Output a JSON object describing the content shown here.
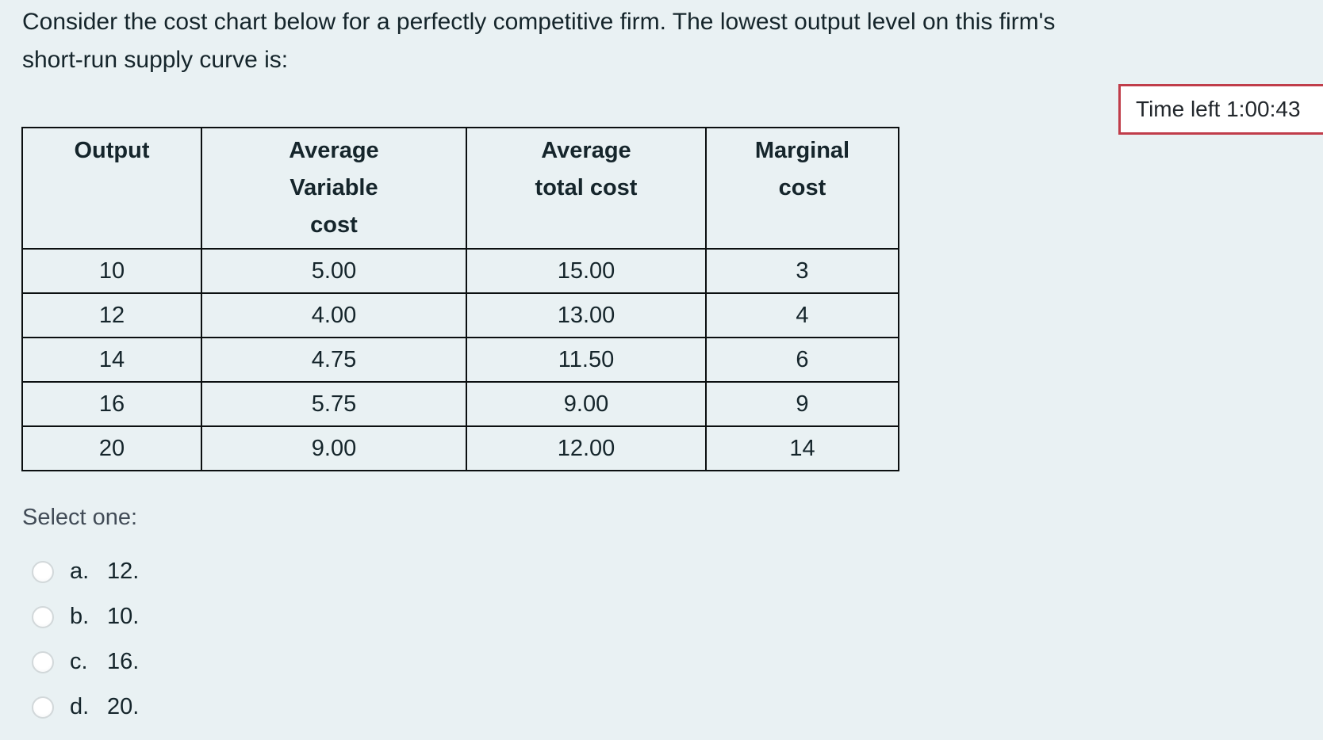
{
  "question": {
    "text": "Consider the cost chart below for a perfectly competitive firm. The lowest output level on this firm's\nshort-run supply curve is:"
  },
  "timer": {
    "label": "Time left 1:00:43"
  },
  "table": {
    "headers": [
      "Output",
      "Average\nVariable\ncost",
      "Average\ntotal cost",
      "Marginal\ncost"
    ],
    "rows": [
      [
        "10",
        "5.00",
        "15.00",
        "3"
      ],
      [
        "12",
        "4.00",
        "13.00",
        "4"
      ],
      [
        "14",
        "4.75",
        "11.50",
        "6"
      ],
      [
        "16",
        "5.75",
        "9.00",
        "9"
      ],
      [
        "20",
        "9.00",
        "12.00",
        "14"
      ]
    ]
  },
  "prompt": {
    "label": "Select one:"
  },
  "options": [
    {
      "letter": "a.",
      "text": "12."
    },
    {
      "letter": "b.",
      "text": "10."
    },
    {
      "letter": "c.",
      "text": "16."
    },
    {
      "letter": "d.",
      "text": "20."
    }
  ],
  "colors": {
    "bg": "#e9f1f3",
    "text_dark": "#15252b",
    "prompt": "#424c57",
    "timer_border": "#c03d4a",
    "table_border": "#0b0f10"
  }
}
